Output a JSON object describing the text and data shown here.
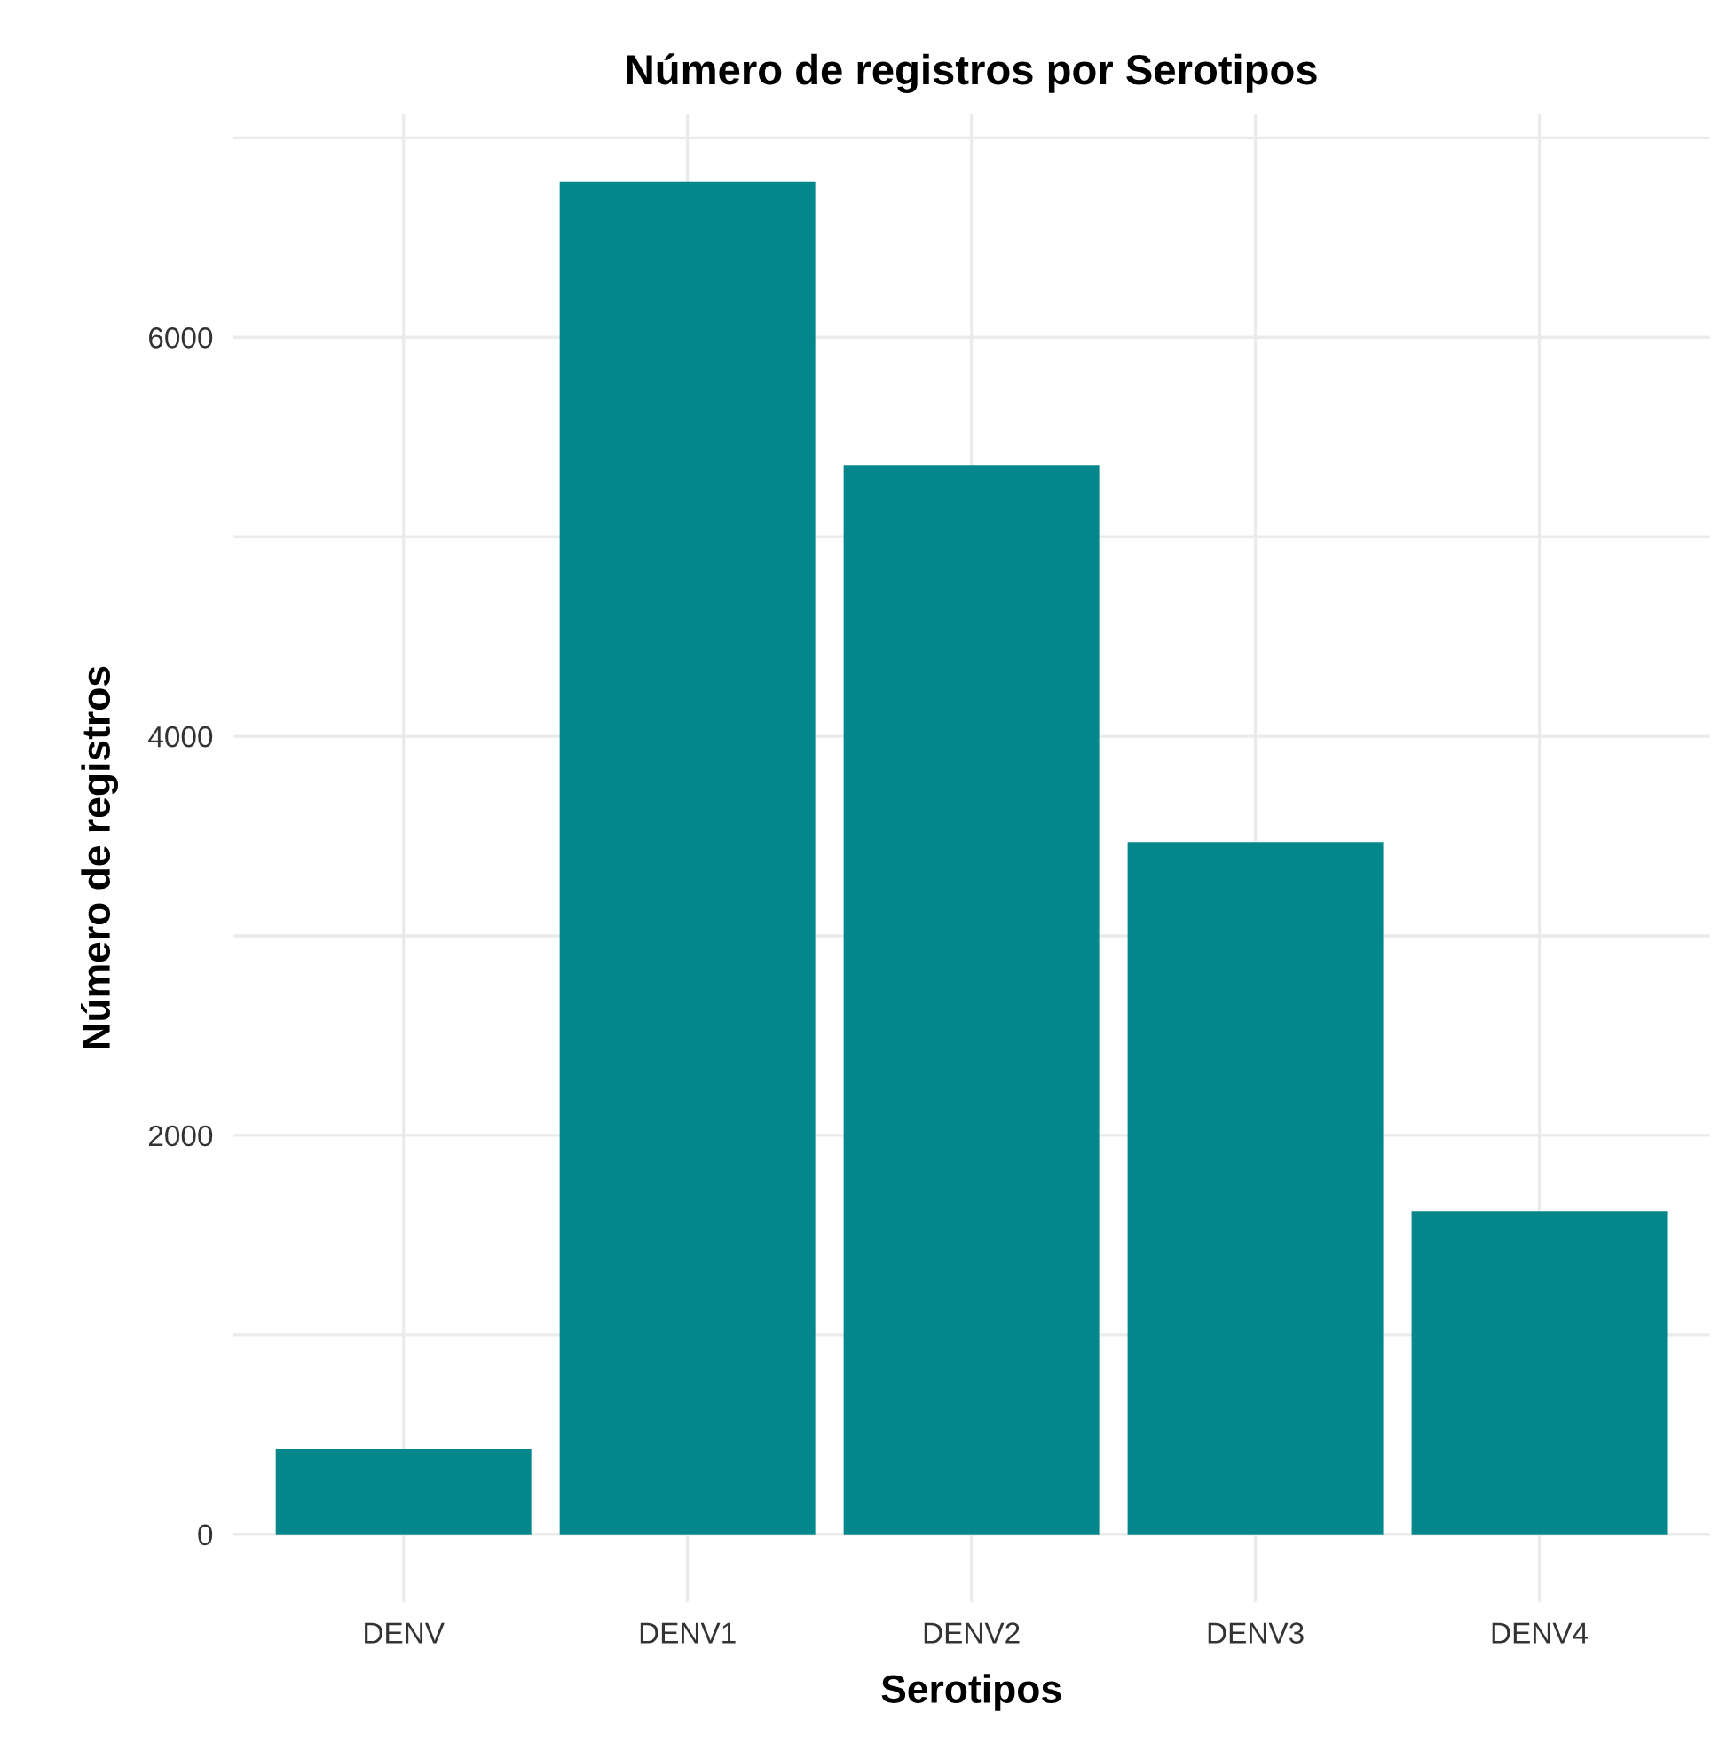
{
  "chart_data": {
    "type": "bar",
    "title": "Número de registros por Serotipos",
    "xlabel": "Serotipos",
    "ylabel": "Número de registros",
    "categories": [
      "DENV",
      "DENV1",
      "DENV2",
      "DENV3",
      "DENV4"
    ],
    "values": [
      430,
      6780,
      5360,
      3470,
      1620
    ],
    "color": "#03878a",
    "ylim": [
      -340,
      7120
    ],
    "yticks": [
      0,
      {
        "value": 1000,
        "label": null
      },
      2000,
      {
        "value": 3000,
        "label": null
      },
      4000,
      {
        "value": 5000,
        "label": null
      },
      6000,
      {
        "value": 7000,
        "label": null
      }
    ],
    "grid": true
  }
}
